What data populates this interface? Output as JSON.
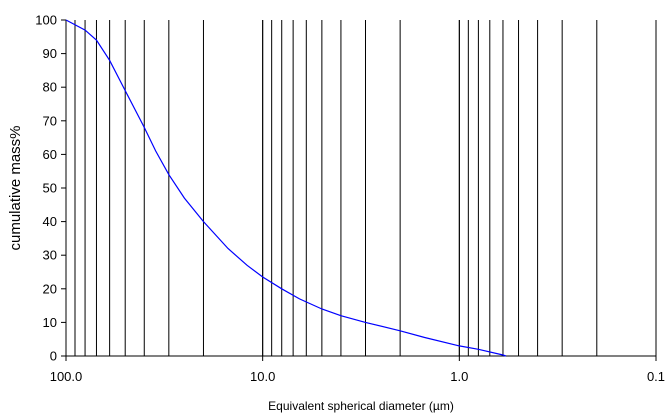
{
  "chart_data": {
    "type": "line",
    "title": "",
    "xlabel": "Equivalent spherical diameter (µm)",
    "ylabel": "cumulative mass%",
    "x_scale": "log",
    "x_reversed": true,
    "xlim": [
      100,
      0.1
    ],
    "ylim": [
      0,
      100
    ],
    "grid": {
      "vertical": true,
      "horizontal": false
    },
    "legend": "none",
    "x_tick_labels": [
      "100.0",
      "10.0",
      "1.0",
      "0.1"
    ],
    "y_tick_labels": [
      "0",
      "10",
      "20",
      "30",
      "40",
      "50",
      "60",
      "70",
      "80",
      "90",
      "100"
    ],
    "series": [
      {
        "color": "#0000ff",
        "points": [
          [
            100,
            100
          ],
          [
            80,
            97
          ],
          [
            70,
            94
          ],
          [
            60,
            88
          ],
          [
            50,
            79
          ],
          [
            40,
            68
          ],
          [
            35,
            61
          ],
          [
            30,
            54
          ],
          [
            25,
            47
          ],
          [
            20,
            40
          ],
          [
            15,
            32
          ],
          [
            12,
            27
          ],
          [
            10,
            23.5
          ],
          [
            8,
            20
          ],
          [
            6.5,
            17
          ],
          [
            5,
            14
          ],
          [
            4,
            12
          ],
          [
            3,
            10
          ],
          [
            2,
            7.5
          ],
          [
            1.5,
            5.5
          ],
          [
            1,
            3
          ],
          [
            0.8,
            2
          ],
          [
            0.6,
            0.3
          ],
          [
            0.58,
            0
          ]
        ]
      }
    ]
  }
}
